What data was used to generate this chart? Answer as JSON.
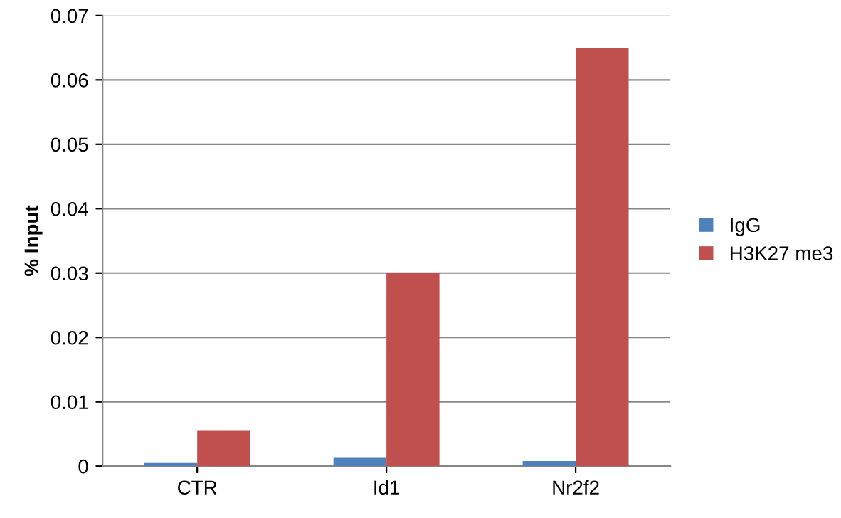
{
  "chart_data": {
    "type": "bar",
    "ylabel": "% Input",
    "categories": [
      "CTR",
      "Id1",
      "Nr2f2"
    ],
    "series": [
      {
        "name": "IgG",
        "color": "#4f81bd",
        "values": [
          0.0005,
          0.0014,
          0.0008
        ]
      },
      {
        "name": "H3K27 me3",
        "color": "#c0504d",
        "values": [
          0.0055,
          0.03,
          0.065
        ]
      }
    ],
    "ylim": [
      0,
      0.07
    ],
    "yticks": [
      {
        "value": 0,
        "label": "0"
      },
      0.01,
      0.02,
      0.03,
      0.04,
      0.05,
      0.06,
      0.07
    ],
    "grid": "y",
    "legend": "right"
  }
}
